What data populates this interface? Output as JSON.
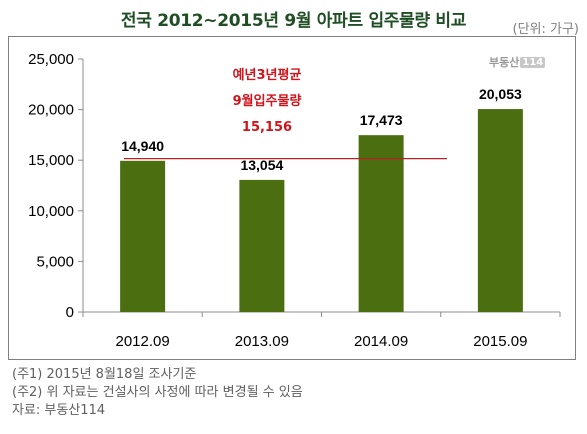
{
  "chart_data": {
    "type": "bar",
    "title": "전국 2012~2015년 9월 아파트 입주물량 비교",
    "unit_label": "(단위: 가구)",
    "categories": [
      "2012.09",
      "2013.09",
      "2014.09",
      "2015.09"
    ],
    "values": [
      14940,
      13054,
      17473,
      20053
    ],
    "value_labels": [
      "14,940",
      "13,054",
      "17,473",
      "20,053"
    ],
    "ylim": [
      0,
      25000
    ],
    "yticks": [
      0,
      5000,
      10000,
      15000,
      20000,
      25000
    ],
    "ytick_labels": [
      "0",
      "5,000",
      "10,000",
      "15,000",
      "20,000",
      "25,000"
    ],
    "grid": false,
    "bar_color": "#4b6e10",
    "average": {
      "value": 15156,
      "line_color": "#b22222",
      "label_lines": [
        "예년3년평균",
        "9월입주물량",
        "15,156"
      ]
    }
  },
  "logo": {
    "text": "부동산",
    "num": "114"
  },
  "notes": [
    "(주1) 2015년 8월18일 조사기준",
    "(주2) 위 자료는 건설사의 사정에 따라 변경될 수 있음",
    "자료: 부동산114"
  ]
}
